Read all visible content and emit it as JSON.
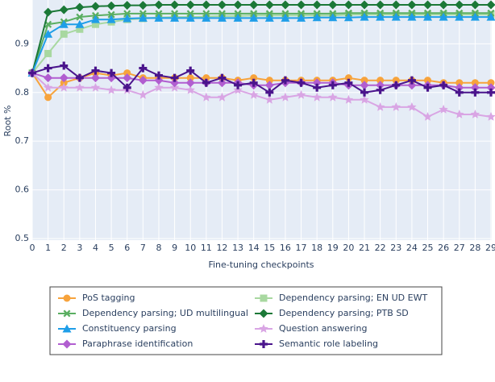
{
  "chart_data": {
    "type": "line",
    "x_label": "Fine-tuning checkpoints",
    "y_label": "Root %",
    "x": [
      0,
      1,
      2,
      3,
      4,
      5,
      6,
      7,
      8,
      9,
      10,
      11,
      12,
      13,
      14,
      15,
      16,
      17,
      18,
      19,
      20,
      21,
      22,
      23,
      24,
      25,
      26,
      27,
      28,
      29
    ],
    "xlim": [
      0,
      29
    ],
    "xticks": [
      0,
      1,
      2,
      3,
      4,
      5,
      6,
      7,
      8,
      9,
      10,
      11,
      12,
      13,
      14,
      15,
      16,
      17,
      18,
      19,
      20,
      21,
      22,
      23,
      24,
      25,
      26,
      27,
      28,
      29
    ],
    "ylim": [
      0.5,
      0.99
    ],
    "yticks": [
      0.5,
      0.6,
      0.7,
      0.8,
      0.9
    ],
    "grid": true,
    "series": [
      {
        "name": "PoS tagging",
        "color": "#f7a33c",
        "marker": "circle",
        "values": [
          0.84,
          0.79,
          0.82,
          0.83,
          0.84,
          0.835,
          0.84,
          0.83,
          0.83,
          0.83,
          0.83,
          0.83,
          0.83,
          0.825,
          0.83,
          0.825,
          0.825,
          0.825,
          0.825,
          0.825,
          0.83,
          0.825,
          0.825,
          0.825,
          0.825,
          0.825,
          0.82,
          0.82,
          0.82,
          0.82
        ]
      },
      {
        "name": "Dependency parsing; EN UD EWT",
        "color": "#a8d8a0",
        "marker": "square",
        "values": [
          0.84,
          0.88,
          0.92,
          0.93,
          0.94,
          0.945,
          0.95,
          0.952,
          0.954,
          0.955,
          0.955,
          0.956,
          0.957,
          0.957,
          0.958,
          0.958,
          0.958,
          0.958,
          0.958,
          0.958,
          0.96,
          0.96,
          0.96,
          0.96,
          0.96,
          0.96,
          0.96,
          0.96,
          0.96,
          0.96
        ]
      },
      {
        "name": "Dependency parsing; UD multilingual",
        "color": "#5aae61",
        "marker": "x",
        "values": [
          0.84,
          0.94,
          0.945,
          0.955,
          0.958,
          0.96,
          0.962,
          0.962,
          0.962,
          0.962,
          0.962,
          0.962,
          0.962,
          0.962,
          0.962,
          0.962,
          0.962,
          0.962,
          0.962,
          0.962,
          0.963,
          0.963,
          0.963,
          0.963,
          0.963,
          0.963,
          0.963,
          0.963,
          0.963,
          0.963
        ]
      },
      {
        "name": "Dependency parsing; PTB SD",
        "color": "#1b7837",
        "marker": "diamond",
        "values": [
          0.84,
          0.965,
          0.97,
          0.975,
          0.977,
          0.978,
          0.979,
          0.979,
          0.98,
          0.98,
          0.98,
          0.98,
          0.98,
          0.98,
          0.98,
          0.98,
          0.98,
          0.98,
          0.98,
          0.98,
          0.98,
          0.98,
          0.98,
          0.98,
          0.98,
          0.98,
          0.98,
          0.98,
          0.98,
          0.98
        ]
      },
      {
        "name": "Constituency parsing",
        "color": "#1f9ee8",
        "marker": "triangle",
        "values": [
          0.84,
          0.92,
          0.94,
          0.94,
          0.95,
          0.95,
          0.952,
          0.953,
          0.953,
          0.953,
          0.953,
          0.953,
          0.953,
          0.953,
          0.953,
          0.953,
          0.953,
          0.953,
          0.954,
          0.954,
          0.954,
          0.955,
          0.955,
          0.955,
          0.955,
          0.955,
          0.955,
          0.955,
          0.955,
          0.955
        ]
      },
      {
        "name": "Question answering",
        "color": "#d9a5e4",
        "marker": "star",
        "values": [
          0.84,
          0.81,
          0.81,
          0.81,
          0.81,
          0.805,
          0.805,
          0.795,
          0.81,
          0.81,
          0.805,
          0.79,
          0.79,
          0.805,
          0.795,
          0.785,
          0.79,
          0.795,
          0.79,
          0.79,
          0.785,
          0.785,
          0.77,
          0.77,
          0.77,
          0.75,
          0.765,
          0.755,
          0.755,
          0.75
        ]
      },
      {
        "name": "Paraphrase identification",
        "color": "#b15ed0",
        "marker": "diamond",
        "values": [
          0.84,
          0.83,
          0.83,
          0.83,
          0.83,
          0.83,
          0.83,
          0.825,
          0.825,
          0.82,
          0.82,
          0.82,
          0.82,
          0.82,
          0.815,
          0.815,
          0.82,
          0.82,
          0.82,
          0.82,
          0.815,
          0.815,
          0.815,
          0.815,
          0.815,
          0.815,
          0.815,
          0.81,
          0.81,
          0.81
        ]
      },
      {
        "name": "Semantic role labeling",
        "color": "#4a148c",
        "marker": "cross",
        "values": [
          0.84,
          0.85,
          0.855,
          0.83,
          0.845,
          0.84,
          0.81,
          0.85,
          0.835,
          0.83,
          0.845,
          0.82,
          0.83,
          0.815,
          0.82,
          0.8,
          0.825,
          0.82,
          0.81,
          0.815,
          0.82,
          0.8,
          0.805,
          0.815,
          0.825,
          0.81,
          0.815,
          0.8,
          0.8,
          0.8
        ]
      }
    ]
  }
}
